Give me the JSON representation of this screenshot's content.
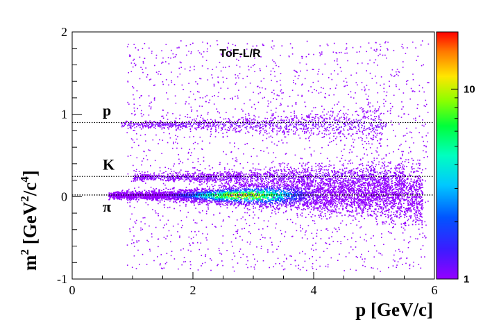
{
  "chart_data": {
    "type": "heatmap",
    "title": "",
    "annotation": "ToF-L/R",
    "xlabel": "p [GeV/c]",
    "ylabel_parts": {
      "base": "m",
      "sup1": "2",
      "mid1": " [GeV",
      "sup2": "2",
      "mid2": "/c",
      "sup3": "4",
      "end": "]"
    },
    "xlim": [
      0,
      6
    ],
    "ylim": [
      -1,
      2
    ],
    "x_ticks": [
      0,
      2,
      4,
      6
    ],
    "y_ticks": [
      -1,
      0,
      1,
      2
    ],
    "x_tick_labels": [
      "0",
      "2",
      "4",
      "6"
    ],
    "y_tick_labels": [
      "-1",
      "0",
      "1",
      "2"
    ],
    "colorbar": {
      "scale": "log",
      "range": [
        1,
        20
      ],
      "tick_labels": [
        {
          "value": 1,
          "label": "1"
        },
        {
          "value": 10,
          "label": "10"
        }
      ]
    },
    "bands": [
      {
        "label": "p",
        "m2": 0.88,
        "line_y": 0.9,
        "p_range": [
          0.8,
          5.2
        ],
        "intensity": 2.5
      },
      {
        "label": "K",
        "m2": 0.24,
        "line_y": 0.245,
        "p_range": [
          1.0,
          5.5
        ],
        "intensity": 4
      },
      {
        "label": "π",
        "m2": 0.02,
        "line_y": 0.02,
        "p_range": [
          0.6,
          5.8
        ],
        "intensity": 20
      }
    ],
    "grid": false
  }
}
